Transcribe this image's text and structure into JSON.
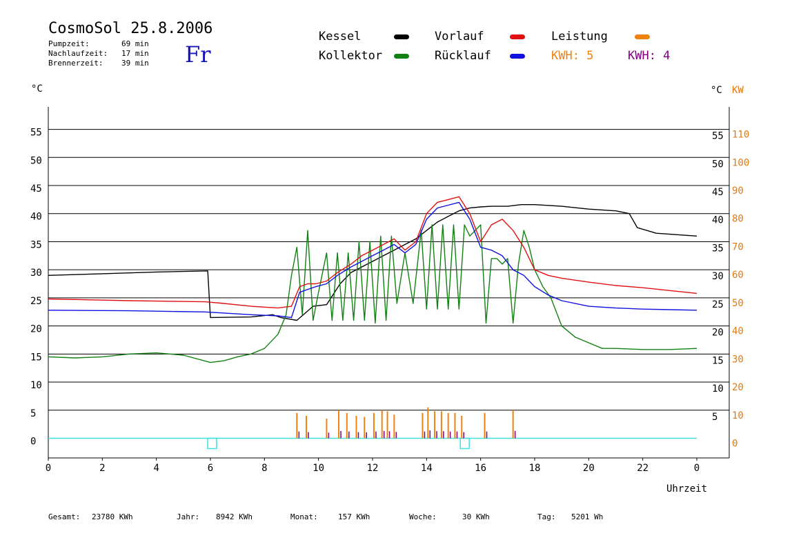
{
  "header": {
    "title": "CosmoSol 25.8.2006",
    "weekday": "Fr",
    "stats": [
      {
        "label": "Pumpzeit:",
        "value": "69 min"
      },
      {
        "label": "Nachlaufzeit:",
        "value": "17 min"
      },
      {
        "label": "Brennerzeit:",
        "value": "39 min"
      }
    ]
  },
  "legend": [
    {
      "name": "Kessel",
      "color": "#000000"
    },
    {
      "name": "Kollektor",
      "color": "#108010"
    },
    {
      "name": "Vorlauf",
      "color": "#e01010"
    },
    {
      "name": "Rücklauf",
      "color": "#1010e0"
    },
    {
      "name": "Leistung",
      "color": "#f08010"
    }
  ],
  "kwh": [
    {
      "label": "KWH: 5",
      "color": "#f08010"
    },
    {
      "label": "KWH: 4",
      "color": "#800080"
    }
  ],
  "footer": [
    {
      "label": "Gesamt:",
      "value": "23780 KWh"
    },
    {
      "label": "Jahr:",
      "value": "8942 KWh"
    },
    {
      "label": "Monat:",
      "value": "157 KWh"
    },
    {
      "label": "Woche:",
      "value": "30 KWh"
    },
    {
      "label": "Tag:",
      "value": "5201 Wh"
    }
  ],
  "chart_data": {
    "type": "line",
    "xlabel": "Uhrzeit",
    "ylabel_left": "°C",
    "ylabel_right": "°C",
    "ylabel_right2": "KW",
    "xlim": [
      0,
      24
    ],
    "ylim": [
      -3.5,
      59
    ],
    "x_ticks": [
      "0",
      "2",
      "4",
      "6",
      "8",
      "10",
      "12",
      "14",
      "16",
      "18",
      "20",
      "22",
      "0"
    ],
    "y_ticks": [
      0,
      5,
      10,
      15,
      20,
      25,
      30,
      35,
      40,
      45,
      50,
      55
    ],
    "y_ticks_right": [
      "5",
      "10",
      "15",
      "20",
      "25",
      "30",
      "35",
      "40",
      "45",
      "50",
      "55"
    ],
    "y_ticks_kw": [
      "0",
      "10",
      "20",
      "30",
      "40",
      "50",
      "60",
      "70",
      "80",
      "90",
      "100",
      "110"
    ],
    "grid": true,
    "series": [
      {
        "name": "Kessel",
        "color": "#000000",
        "x": [
          0,
          2,
          4,
          5.9,
          6.0,
          7.5,
          8.3,
          8.6,
          9.2,
          9.8,
          10.3,
          10.8,
          11.2,
          11.6,
          12.0,
          12.4,
          12.8,
          13.2,
          13.6,
          14.0,
          14.4,
          14.8,
          15.2,
          15.6,
          16.0,
          16.4,
          17.0,
          17.5,
          18.0,
          19.0,
          20.0,
          21.0,
          21.5,
          21.8,
          22.5,
          24
        ],
        "y": [
          29,
          29.3,
          29.6,
          29.8,
          21.5,
          21.6,
          22,
          21.5,
          21,
          23.5,
          23.8,
          27.5,
          29.5,
          30.5,
          31.5,
          32.5,
          33.5,
          34.5,
          35.5,
          37,
          38.5,
          39.5,
          40.5,
          41,
          41.2,
          41.3,
          41.3,
          41.6,
          41.6,
          41.3,
          40.8,
          40.5,
          40,
          37.5,
          36.5,
          36
        ]
      },
      {
        "name": "Kollektor",
        "color": "#108010",
        "x": [
          0,
          1,
          2,
          3,
          4,
          5,
          6.0,
          6.5,
          7.0,
          7.5,
          8.0,
          8.5,
          8.8,
          9.0,
          9.2,
          9.4,
          9.6,
          9.8,
          10.0,
          10.3,
          10.5,
          10.7,
          10.9,
          11.1,
          11.3,
          11.5,
          11.7,
          11.9,
          12.1,
          12.3,
          12.5,
          12.7,
          12.9,
          13.2,
          13.5,
          13.8,
          14.0,
          14.2,
          14.4,
          14.6,
          14.8,
          15.0,
          15.2,
          15.4,
          15.6,
          15.8,
          16.0,
          16.2,
          16.4,
          16.6,
          16.8,
          17.0,
          17.2,
          17.4,
          17.6,
          17.8,
          18.0,
          18.3,
          18.6,
          19.0,
          19.5,
          20.0,
          20.5,
          21.0,
          22.0,
          23.0,
          24
        ],
        "y": [
          14.5,
          14.3,
          14.5,
          15.0,
          15.2,
          14.8,
          13.5,
          13.8,
          14.5,
          15.0,
          16.0,
          18.5,
          22.0,
          29.0,
          34.0,
          22.0,
          37.0,
          21.0,
          26.0,
          33.0,
          21.0,
          33.0,
          21.0,
          33.0,
          21.0,
          35.0,
          21.0,
          35.0,
          20.5,
          36.0,
          21.0,
          36.0,
          24.0,
          33.0,
          24.0,
          37.0,
          23.0,
          38.0,
          23.0,
          38.0,
          23.0,
          38.0,
          23.0,
          38.0,
          36.0,
          37.0,
          38.0,
          20.5,
          32.0,
          32.0,
          31.0,
          32.0,
          20.5,
          31.0,
          37.0,
          34.0,
          30.0,
          27.0,
          25.0,
          20.0,
          18.0,
          17.0,
          16.0,
          16.0,
          15.8,
          15.8,
          16.0
        ]
      },
      {
        "name": "Vorlauf",
        "color": "#e01010",
        "x": [
          0,
          3,
          5.8,
          6.5,
          7.5,
          8.5,
          9.0,
          9.3,
          9.6,
          9.9,
          10.3,
          10.7,
          11.2,
          11.6,
          12.0,
          12.4,
          12.8,
          13.2,
          13.6,
          14.0,
          14.4,
          14.8,
          15.2,
          15.6,
          16.0,
          16.4,
          16.8,
          17.2,
          17.6,
          18.0,
          18.5,
          19.0,
          20.0,
          21.0,
          22.0,
          23.0,
          24
        ],
        "y": [
          24.8,
          24.5,
          24.3,
          24.0,
          23.5,
          23.2,
          23.5,
          27.0,
          27.5,
          27.5,
          28.0,
          29.5,
          31.0,
          32.5,
          33.5,
          34.5,
          35.5,
          33.5,
          35.0,
          40.0,
          42.0,
          42.5,
          43.0,
          40.0,
          35.0,
          38.0,
          39.0,
          37.0,
          34.0,
          30.0,
          29.0,
          28.5,
          27.8,
          27.2,
          26.8,
          26.3,
          25.8
        ]
      },
      {
        "name": "Rücklauf",
        "color": "#1010e0",
        "x": [
          0,
          3,
          5.8,
          6.5,
          7.5,
          8.5,
          9.0,
          9.3,
          9.6,
          9.9,
          10.3,
          10.7,
          11.2,
          11.6,
          12.0,
          12.4,
          12.8,
          13.2,
          13.6,
          14.0,
          14.4,
          14.8,
          15.2,
          15.6,
          16.0,
          16.4,
          16.8,
          17.2,
          17.6,
          18.0,
          18.5,
          19.0,
          20.0,
          21.0,
          22.0,
          23.0,
          24
        ],
        "y": [
          22.8,
          22.7,
          22.5,
          22.3,
          22.0,
          21.8,
          21.5,
          26.0,
          26.5,
          27.0,
          27.5,
          29.0,
          30.5,
          31.5,
          32.5,
          33.5,
          34.5,
          33.0,
          34.5,
          39.0,
          41.0,
          41.5,
          42.0,
          39.0,
          34.0,
          33.5,
          32.5,
          30.0,
          29.0,
          27.0,
          25.5,
          24.5,
          23.5,
          23.2,
          23.0,
          22.9,
          22.8
        ]
      }
    ],
    "power_spikes_x": [
      9.2,
      9.55,
      10.3,
      10.75,
      11.05,
      11.4,
      11.7,
      12.05,
      12.35,
      12.55,
      12.8,
      13.85,
      14.05,
      14.3,
      14.55,
      14.8,
      15.05,
      15.3,
      16.15,
      17.2
    ],
    "power_spikes_y": [
      4.5,
      4.0,
      3.5,
      5.0,
      4.5,
      4.0,
      3.8,
      4.5,
      5.0,
      4.8,
      4.2,
      4.5,
      5.5,
      4.8,
      4.8,
      4.5,
      4.5,
      4.0,
      4.5,
      5.0
    ],
    "pump_marks_x": [
      6.05,
      15.4
    ]
  }
}
